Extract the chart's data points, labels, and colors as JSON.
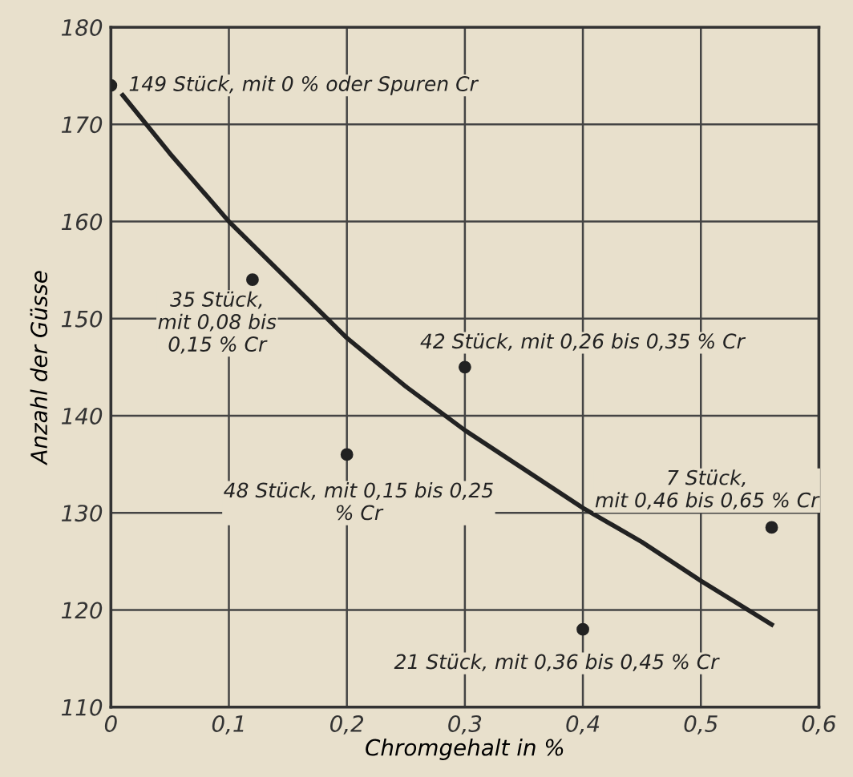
{
  "chart_data": {
    "type": "scatter",
    "xlabel": "Chromgehalt in %",
    "ylabel": "Anzahl der Güsse",
    "xlim": [
      0,
      0.6
    ],
    "ylim": [
      110,
      180
    ],
    "xticks": [
      0,
      {
        "value": 0.1,
        "label": "0,1"
      },
      {
        "value": 0.2,
        "label": "0,2"
      },
      {
        "value": 0.3,
        "label": "0,3"
      },
      {
        "value": 0.4,
        "label": "0,4"
      },
      {
        "value": 0.5,
        "label": "0,5"
      },
      {
        "value": 0.6,
        "label": "0,6"
      }
    ],
    "yticks": [
      110,
      120,
      130,
      140,
      150,
      160,
      170,
      180
    ],
    "grid": true,
    "series": [
      {
        "color": "#222222",
        "marker": "circle",
        "x": [
          0,
          0.12,
          0.2,
          0.3,
          0.4,
          0.56
        ],
        "values": [
          174,
          154,
          136,
          145,
          118,
          128.5
        ]
      },
      {
        "type": "line",
        "color": "#222222",
        "line_style": "solid",
        "x": [
          0.01,
          0.05,
          0.1,
          0.15,
          0.2,
          0.25,
          0.3,
          0.35,
          0.4,
          0.45,
          0.5,
          0.56
        ],
        "values": [
          173,
          167,
          160,
          154,
          148,
          143,
          138.5,
          134.5,
          130.5,
          127,
          123,
          118.5
        ]
      }
    ],
    "annotations": [
      {
        "text": "149 Stück, mit 0 % oder Spuren Cr",
        "x": 0,
        "y": 174
      },
      {
        "text": "35 Stück,\nmit 0,08 bis\n0,15 % Cr",
        "x": 0.12,
        "y": 154
      },
      {
        "text": "48 Stück, mit 0,15 bis 0,25\n% Cr",
        "x": 0.2,
        "y": 136
      },
      {
        "text": "42 Stück, mit 0,26 bis 0,35 % Cr",
        "x": 0.3,
        "y": 145
      },
      {
        "text": "21 Stück, mit 0,36 bis 0,45 % Cr",
        "x": 0.4,
        "y": 118
      },
      {
        "text": "7 Stück,\nmit 0,46 bis 0,65 % Cr",
        "x": 0.56,
        "y": 128.5
      }
    ]
  }
}
